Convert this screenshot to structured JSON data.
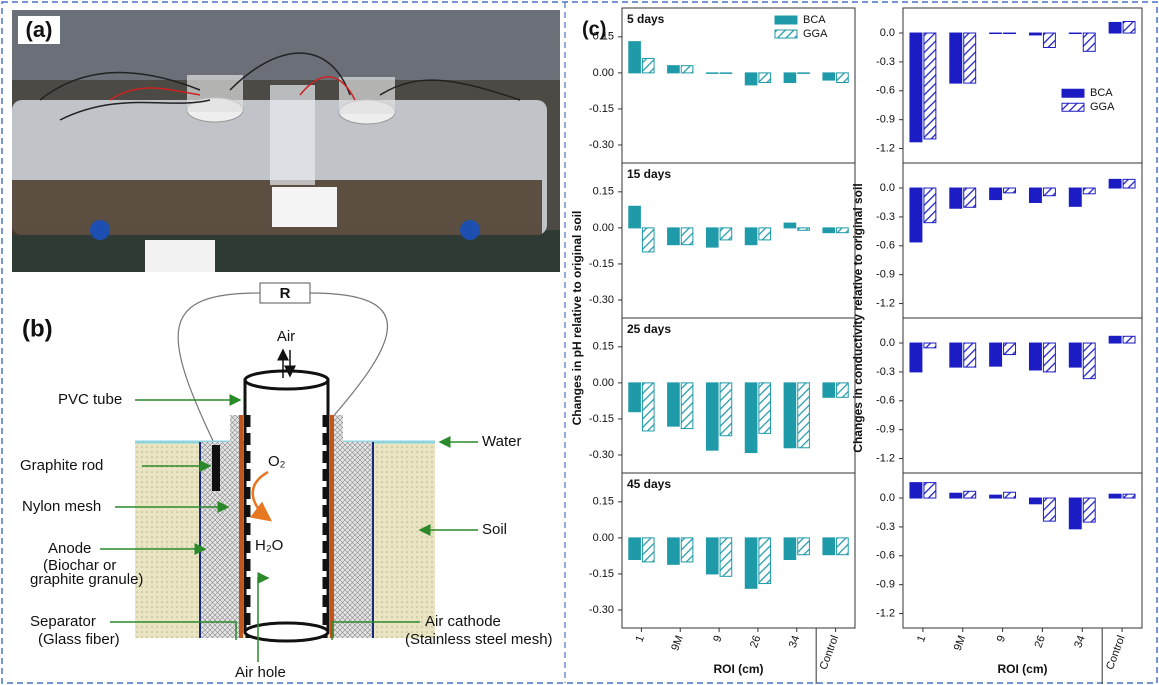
{
  "panel_a": {
    "label": "(a)"
  },
  "diagram": {
    "label": "(b)",
    "resistor": "R",
    "air": "Air",
    "pvc_tube": "PVC tube",
    "water": "Water",
    "graphite_rod": "Graphite rod",
    "o2": "O₂",
    "nylon_mesh": "Nylon mesh",
    "soil": "Soil",
    "h2o": "H₂O",
    "anode": "Anode",
    "anode_note": [
      "(Biochar or",
      "graphite granule)"
    ],
    "separator": "Separator",
    "separator_note": "(Glass fiber)",
    "air_cathode": "Air cathode",
    "air_cathode_note": "(Stainless steel mesh)",
    "air_hole": "Air hole"
  },
  "panel_c": {
    "label": "(c)"
  },
  "chart_data": [
    {
      "type": "bar",
      "ylabel": "Changes in pH relative to original soil",
      "xlabel": "ROI (cm)",
      "categories": [
        "1",
        "9M",
        "9",
        "26",
        "34",
        "Control"
      ],
      "ylim": [
        -0.375,
        0.27
      ],
      "yticks": [
        0.15,
        {
          "value": 0,
          "label": "0.00"
        },
        -0.15,
        {
          "value": -0.3,
          "label": "-0.30"
        }
      ],
      "legend": "upper right",
      "series": [
        {
          "name": "BCA",
          "color": "#1f9aa8",
          "hatch": false
        },
        {
          "name": "GGA",
          "color": "#1f9aa8",
          "hatch": true
        }
      ],
      "panels": [
        {
          "title": "5 days",
          "values": [
            [
              0.13,
              0.03,
              0,
              -0.05,
              -0.04,
              -0.03
            ],
            [
              0.06,
              0.03,
              0,
              -0.04,
              0,
              -0.04
            ]
          ]
        },
        {
          "title": "15 days",
          "values": [
            [
              0.09,
              -0.07,
              -0.08,
              -0.07,
              0.02,
              -0.02
            ],
            [
              -0.1,
              -0.07,
              -0.05,
              -0.05,
              -0.01,
              -0.02
            ]
          ]
        },
        {
          "title": "25 days",
          "values": [
            [
              -0.12,
              -0.18,
              -0.28,
              -0.29,
              -0.27,
              -0.06
            ],
            [
              -0.2,
              -0.19,
              -0.22,
              -0.21,
              -0.27,
              -0.06
            ]
          ]
        },
        {
          "title": "45 days",
          "values": [
            [
              -0.09,
              -0.11,
              -0.15,
              -0.21,
              -0.09,
              -0.07
            ],
            [
              -0.1,
              -0.1,
              -0.16,
              -0.19,
              -0.07,
              -0.07
            ]
          ]
        }
      ]
    },
    {
      "type": "bar",
      "ylabel": "Changes in conductivity relative to original soil",
      "xlabel": "ROI (cm)",
      "categories": [
        "1",
        "9M",
        "9",
        "26",
        "34",
        "Control"
      ],
      "ylim": [
        -1.35,
        0.26
      ],
      "yticks": [
        {
          "value": 0,
          "label": "0.0"
        },
        -0.3,
        -0.6,
        -0.9,
        -1.2
      ],
      "legend": "center right",
      "series": [
        {
          "name": "BCA",
          "color": "#1c1cc4",
          "hatch": false
        },
        {
          "name": "GGA",
          "color": "#1c1cc4",
          "hatch": true
        }
      ],
      "panels": [
        {
          "values": [
            [
              -1.13,
              -0.52,
              0,
              -0.02,
              0,
              0.11
            ],
            [
              -1.1,
              -0.52,
              0,
              -0.15,
              -0.19,
              0.12
            ]
          ]
        },
        {
          "values": [
            [
              -0.56,
              -0.21,
              -0.12,
              -0.15,
              -0.19,
              0.09
            ],
            [
              -0.36,
              -0.2,
              -0.05,
              -0.08,
              -0.06,
              0.09
            ]
          ]
        },
        {
          "values": [
            [
              -0.3,
              -0.25,
              -0.24,
              -0.28,
              -0.25,
              0.07
            ],
            [
              -0.05,
              -0.25,
              -0.12,
              -0.3,
              -0.37,
              0.07
            ]
          ]
        },
        {
          "values": [
            [
              0.16,
              0.05,
              0.03,
              -0.06,
              -0.32,
              0.04
            ],
            [
              0.16,
              0.07,
              0.06,
              -0.24,
              -0.25,
              0.04
            ]
          ]
        }
      ]
    }
  ]
}
